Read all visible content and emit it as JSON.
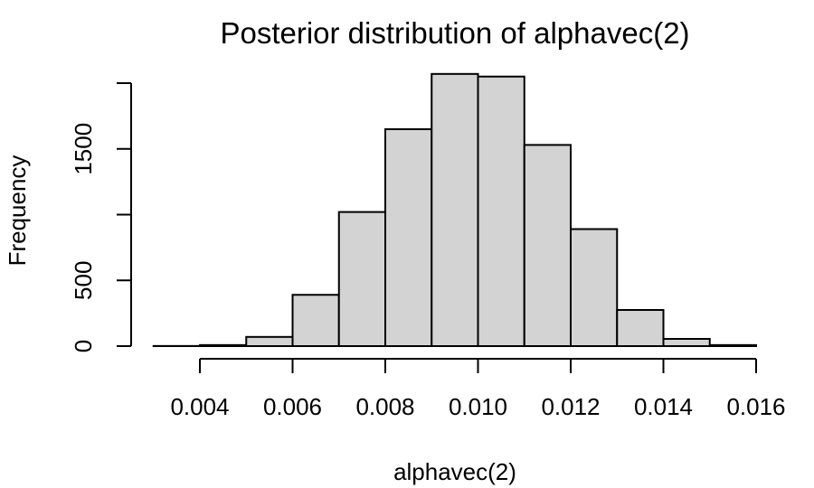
{
  "chart_data": {
    "type": "bar",
    "title": "Posterior distribution of alphavec(2)",
    "xlabel": "alphavec(2)",
    "ylabel": "Frequency",
    "bin_edges": [
      0.003,
      0.004,
      0.005,
      0.006,
      0.007,
      0.008,
      0.009,
      0.01,
      0.011,
      0.012,
      0.013,
      0.014,
      0.015,
      0.016
    ],
    "values": [
      1,
      8,
      70,
      390,
      1020,
      1650,
      2070,
      2050,
      1530,
      890,
      275,
      55,
      8
    ],
    "xlim": [
      0.003,
      0.016
    ],
    "ylim": [
      0,
      2000
    ],
    "x_ticks": [
      0.004,
      0.006,
      0.008,
      0.01,
      0.012,
      0.014,
      0.016
    ],
    "x_tick_labels": [
      "0.004",
      "0.006",
      "0.008",
      "0.010",
      "0.012",
      "0.014",
      "0.016"
    ],
    "y_ticks": [
      0,
      500,
      1000,
      1500,
      2000
    ],
    "y_tick_labels": [
      "0",
      "500",
      "",
      "1500",
      ""
    ],
    "grid": false,
    "legend": "none"
  }
}
